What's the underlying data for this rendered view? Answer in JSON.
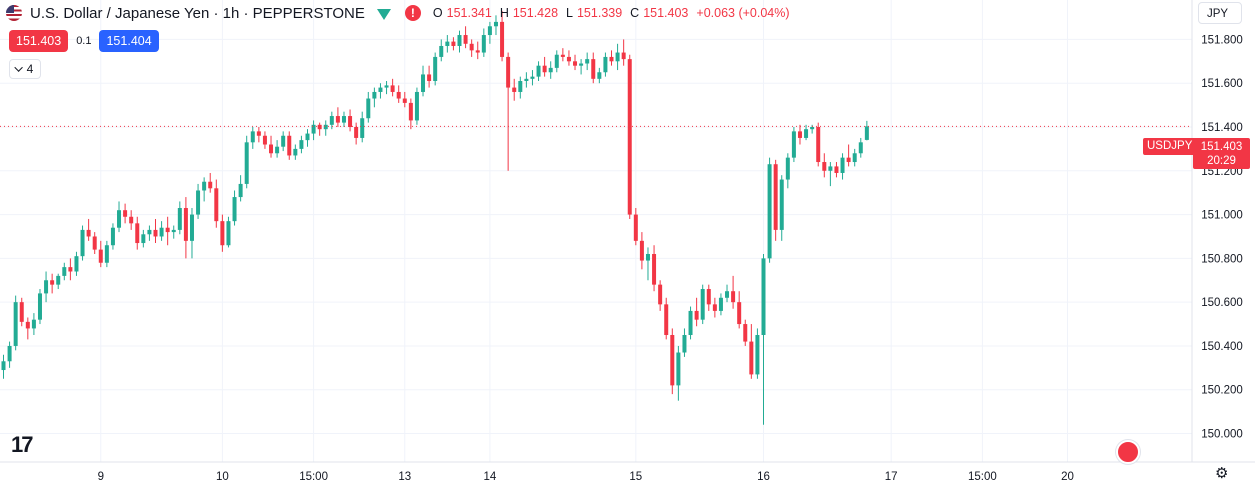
{
  "header": {
    "symbol_title": "U.S. Dollar / Japanese Yen · 1h · PEPPERSTONE",
    "alert_glyph": "!",
    "ohlc": {
      "o_label": "O",
      "o_value": "151.341",
      "h_label": "H",
      "h_value": "151.428",
      "l_label": "L",
      "l_value": "151.339",
      "c_label": "C",
      "c_value": "151.403",
      "change": "+0.063 (+0.04%)"
    }
  },
  "trade": {
    "sell": "151.403",
    "spread": "0.1",
    "buy": "151.404"
  },
  "indicators": {
    "count": "4"
  },
  "currency": "JPY",
  "last_price": {
    "symbol": "USDJPY",
    "price": "151.403",
    "countdown": "20:29"
  },
  "colors": {
    "up": "#22ab94",
    "down": "#f23645",
    "grid": "#f0f3fa",
    "axis_text": "#131722",
    "price_line": "#f23645"
  },
  "chart_data": {
    "type": "candlestick",
    "y_ticks": [
      150.0,
      150.2,
      150.4,
      150.6,
      150.8,
      151.0,
      151.2,
      151.4,
      151.6,
      151.8
    ],
    "y_tick_labels": [
      "150.000",
      "150.200",
      "150.400",
      "150.600",
      "150.800",
      "151.000",
      "151.200",
      "151.400",
      "151.600",
      "151.800"
    ],
    "ylim": [
      149.87,
      151.98
    ],
    "x_ticks": [
      {
        "label": "9",
        "index": 16
      },
      {
        "label": "10",
        "index": 36
      },
      {
        "label": "15:00",
        "index": 51
      },
      {
        "label": "13",
        "index": 66
      },
      {
        "label": "14",
        "index": 80
      },
      {
        "label": "15",
        "index": 104
      },
      {
        "label": "16",
        "index": 125
      },
      {
        "label": "17",
        "index": 146
      },
      {
        "label": "15:00",
        "index": 161
      },
      {
        "label": "20",
        "index": 175
      }
    ],
    "last_close": 151.403,
    "ohlc": [
      [
        150.29,
        150.36,
        150.25,
        150.33
      ],
      [
        150.33,
        150.42,
        150.3,
        150.4
      ],
      [
        150.4,
        150.63,
        150.38,
        150.6
      ],
      [
        150.6,
        150.62,
        150.49,
        150.51
      ],
      [
        150.51,
        150.53,
        150.43,
        150.48
      ],
      [
        150.48,
        150.55,
        150.45,
        150.52
      ],
      [
        150.52,
        150.66,
        150.5,
        150.64
      ],
      [
        150.64,
        150.74,
        150.6,
        150.7
      ],
      [
        150.7,
        150.73,
        150.64,
        150.68
      ],
      [
        150.68,
        150.73,
        150.66,
        150.72
      ],
      [
        150.72,
        150.78,
        150.7,
        150.76
      ],
      [
        150.76,
        150.8,
        150.7,
        150.74
      ],
      [
        150.74,
        150.83,
        150.72,
        150.81
      ],
      [
        150.81,
        150.95,
        150.79,
        150.93
      ],
      [
        150.93,
        150.98,
        150.88,
        150.9
      ],
      [
        150.9,
        150.92,
        150.82,
        150.84
      ],
      [
        150.84,
        150.88,
        150.76,
        150.78
      ],
      [
        150.78,
        150.88,
        150.76,
        150.86
      ],
      [
        150.86,
        150.96,
        150.84,
        150.94
      ],
      [
        150.94,
        151.06,
        150.92,
        151.02
      ],
      [
        151.02,
        151.05,
        150.96,
        150.99
      ],
      [
        150.99,
        151.02,
        150.93,
        150.96
      ],
      [
        150.96,
        150.99,
        150.84,
        150.87
      ],
      [
        150.87,
        150.93,
        150.85,
        150.91
      ],
      [
        150.91,
        150.95,
        150.88,
        150.93
      ],
      [
        150.93,
        150.98,
        150.87,
        150.9
      ],
      [
        150.9,
        150.97,
        150.88,
        150.94
      ],
      [
        150.94,
        150.99,
        150.86,
        150.92
      ],
      [
        150.92,
        150.95,
        150.89,
        150.93
      ],
      [
        150.93,
        151.06,
        150.91,
        151.03
      ],
      [
        151.03,
        151.08,
        150.8,
        150.88
      ],
      [
        150.88,
        151.03,
        150.8,
        151.0
      ],
      [
        151.0,
        151.14,
        150.98,
        151.11
      ],
      [
        151.11,
        151.17,
        151.06,
        151.15
      ],
      [
        151.15,
        151.19,
        151.1,
        151.12
      ],
      [
        151.12,
        151.16,
        150.94,
        150.97
      ],
      [
        150.97,
        151.0,
        150.83,
        150.86
      ],
      [
        150.86,
        150.99,
        150.85,
        150.97
      ],
      [
        150.97,
        151.11,
        150.95,
        151.08
      ],
      [
        151.08,
        151.18,
        151.06,
        151.14
      ],
      [
        151.14,
        151.36,
        151.12,
        151.33
      ],
      [
        151.33,
        151.4,
        151.3,
        151.38
      ],
      [
        151.38,
        151.4,
        151.33,
        151.36
      ],
      [
        151.36,
        151.38,
        151.3,
        151.32
      ],
      [
        151.32,
        151.36,
        151.26,
        151.28
      ],
      [
        151.28,
        151.34,
        151.26,
        151.31
      ],
      [
        151.31,
        151.38,
        151.29,
        151.36
      ],
      [
        151.36,
        151.38,
        151.25,
        151.27
      ],
      [
        151.27,
        151.32,
        151.25,
        151.3
      ],
      [
        151.3,
        151.36,
        151.28,
        151.34
      ],
      [
        151.34,
        151.39,
        151.31,
        151.37
      ],
      [
        151.37,
        151.43,
        151.34,
        151.41
      ],
      [
        151.41,
        151.42,
        151.36,
        151.39
      ],
      [
        151.39,
        151.43,
        151.36,
        151.41
      ],
      [
        151.41,
        151.47,
        151.39,
        151.45
      ],
      [
        151.45,
        151.49,
        151.4,
        151.42
      ],
      [
        151.42,
        151.47,
        151.4,
        151.45
      ],
      [
        151.45,
        151.48,
        151.38,
        151.4
      ],
      [
        151.4,
        151.42,
        151.32,
        151.35
      ],
      [
        151.35,
        151.47,
        151.33,
        151.44
      ],
      [
        151.44,
        151.56,
        151.42,
        151.53
      ],
      [
        151.53,
        151.58,
        151.49,
        151.56
      ],
      [
        151.56,
        151.6,
        151.53,
        151.58
      ],
      [
        151.58,
        151.61,
        151.55,
        151.59
      ],
      [
        151.59,
        151.62,
        151.54,
        151.56
      ],
      [
        151.56,
        151.59,
        151.51,
        151.53
      ],
      [
        151.53,
        151.56,
        151.49,
        151.51
      ],
      [
        151.51,
        151.53,
        151.39,
        151.43
      ],
      [
        151.43,
        151.58,
        151.41,
        151.56
      ],
      [
        151.56,
        151.68,
        151.54,
        151.64
      ],
      [
        151.64,
        151.68,
        151.58,
        151.61
      ],
      [
        151.61,
        151.74,
        151.59,
        151.72
      ],
      [
        151.72,
        151.8,
        151.7,
        151.77
      ],
      [
        151.77,
        151.82,
        151.74,
        151.79
      ],
      [
        151.79,
        151.81,
        151.75,
        151.77
      ],
      [
        151.77,
        151.84,
        151.74,
        151.82
      ],
      [
        151.82,
        151.86,
        151.76,
        151.78
      ],
      [
        151.78,
        151.8,
        151.72,
        151.75
      ],
      [
        151.75,
        151.79,
        151.71,
        151.74
      ],
      [
        151.74,
        151.85,
        151.72,
        151.82
      ],
      [
        151.82,
        151.88,
        151.78,
        151.86
      ],
      [
        151.86,
        151.91,
        151.82,
        151.88
      ],
      [
        151.88,
        151.93,
        151.7,
        151.72
      ],
      [
        151.72,
        151.74,
        151.2,
        151.58
      ],
      [
        151.58,
        151.62,
        151.52,
        151.56
      ],
      [
        151.56,
        151.63,
        151.53,
        151.61
      ],
      [
        151.61,
        151.65,
        151.58,
        151.62
      ],
      [
        151.62,
        151.66,
        151.59,
        151.63
      ],
      [
        151.63,
        151.7,
        151.61,
        151.68
      ],
      [
        151.68,
        151.72,
        151.63,
        151.65
      ],
      [
        151.65,
        151.7,
        151.62,
        151.67
      ],
      [
        151.67,
        151.75,
        151.65,
        151.73
      ],
      [
        151.73,
        151.76,
        151.7,
        151.72
      ],
      [
        151.72,
        151.75,
        151.68,
        151.7
      ],
      [
        151.7,
        151.73,
        151.66,
        151.68
      ],
      [
        151.68,
        151.71,
        151.64,
        151.69
      ],
      [
        151.69,
        151.74,
        151.66,
        151.71
      ],
      [
        151.71,
        151.74,
        151.6,
        151.62
      ],
      [
        151.62,
        151.67,
        151.6,
        151.65
      ],
      [
        151.65,
        151.74,
        151.63,
        151.72
      ],
      [
        151.72,
        151.75,
        151.68,
        151.7
      ],
      [
        151.7,
        151.78,
        151.66,
        151.74
      ],
      [
        151.74,
        151.8,
        151.68,
        151.71
      ],
      [
        151.71,
        151.73,
        150.98,
        151.0
      ],
      [
        151.0,
        151.03,
        150.86,
        150.88
      ],
      [
        150.88,
        150.92,
        150.75,
        150.79
      ],
      [
        150.79,
        150.85,
        150.7,
        150.82
      ],
      [
        150.82,
        150.86,
        150.65,
        150.68
      ],
      [
        150.68,
        150.7,
        150.56,
        150.59
      ],
      [
        150.59,
        150.62,
        150.43,
        150.45
      ],
      [
        150.45,
        150.48,
        150.18,
        150.22
      ],
      [
        150.22,
        150.4,
        150.15,
        150.37
      ],
      [
        150.37,
        150.48,
        150.35,
        150.45
      ],
      [
        150.45,
        150.58,
        150.43,
        150.56
      ],
      [
        150.56,
        150.62,
        150.49,
        150.52
      ],
      [
        150.52,
        150.68,
        150.5,
        150.66
      ],
      [
        150.66,
        150.68,
        150.56,
        150.59
      ],
      [
        150.59,
        150.62,
        150.53,
        150.56
      ],
      [
        150.56,
        150.64,
        150.54,
        150.62
      ],
      [
        150.62,
        150.68,
        150.6,
        150.65
      ],
      [
        150.65,
        150.72,
        150.57,
        150.6
      ],
      [
        150.6,
        150.65,
        150.48,
        150.5
      ],
      [
        150.5,
        150.52,
        150.4,
        150.42
      ],
      [
        150.42,
        150.5,
        150.25,
        150.27
      ],
      [
        150.27,
        150.48,
        150.25,
        150.45
      ],
      [
        150.45,
        150.82,
        150.04,
        150.8
      ],
      [
        150.8,
        151.26,
        150.78,
        151.23
      ],
      [
        151.23,
        151.25,
        150.88,
        150.93
      ],
      [
        150.93,
        151.18,
        150.88,
        151.16
      ],
      [
        151.16,
        151.28,
        151.12,
        151.26
      ],
      [
        151.26,
        151.4,
        151.24,
        151.38
      ],
      [
        151.38,
        151.41,
        151.32,
        151.35
      ],
      [
        151.35,
        151.41,
        151.34,
        151.39
      ],
      [
        151.39,
        151.41,
        151.37,
        151.4
      ],
      [
        151.4,
        151.42,
        151.22,
        151.24
      ],
      [
        151.24,
        151.28,
        151.17,
        151.2
      ],
      [
        151.2,
        151.24,
        151.13,
        151.22
      ],
      [
        151.22,
        151.24,
        151.17,
        151.19
      ],
      [
        151.19,
        151.28,
        151.16,
        151.26
      ],
      [
        151.26,
        151.32,
        151.22,
        151.24
      ],
      [
        151.24,
        151.3,
        151.22,
        151.28
      ],
      [
        151.28,
        151.35,
        151.26,
        151.33
      ],
      [
        151.341,
        151.428,
        151.339,
        151.403
      ]
    ]
  }
}
